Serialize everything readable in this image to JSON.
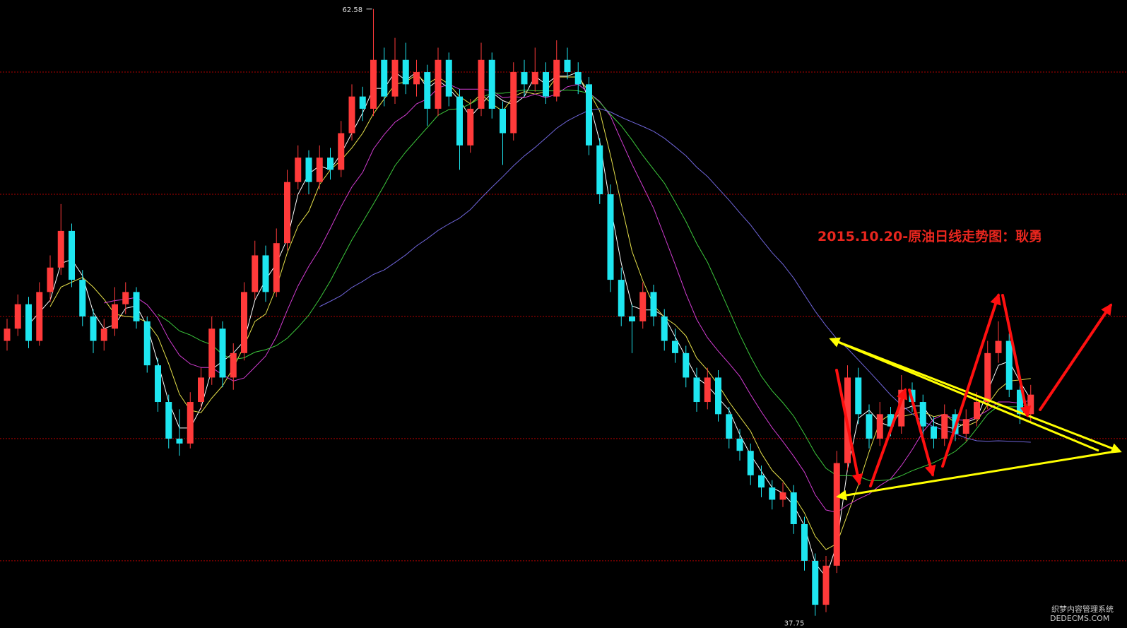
{
  "chart_data": {
    "type": "candlestick",
    "title": "2015.10.20-原油日线走势图：耿勇",
    "watermark": [
      "织梦内容管理系统",
      "DEDECMS.COM"
    ],
    "ylim": [
      37.25,
      62.95
    ],
    "gridlines": [
      40,
      45,
      50,
      55,
      60
    ],
    "up_color": "#ff3a3a",
    "down_color": "#1ee6f0",
    "grid_color": "#b00000",
    "high_marker": 62.58,
    "low_marker": 37.75,
    "moving_averages": [
      {
        "period": 3,
        "color": "#ffffff"
      },
      {
        "period": 5,
        "color": "#e6e04a"
      },
      {
        "period": 10,
        "color": "#d23cd2"
      },
      {
        "period": 15,
        "color": "#3cc83c"
      },
      {
        "period": 30,
        "color": "#6e64d8"
      }
    ],
    "ohlc": [
      [
        49.0,
        49.9,
        48.6,
        49.5
      ],
      [
        49.5,
        50.9,
        49.2,
        50.5
      ],
      [
        50.5,
        50.8,
        48.7,
        49.0
      ],
      [
        49.0,
        51.4,
        48.8,
        51.0
      ],
      [
        51.0,
        52.5,
        50.6,
        52.0
      ],
      [
        52.0,
        54.6,
        51.7,
        53.5
      ],
      [
        53.5,
        53.8,
        51.2,
        51.5
      ],
      [
        51.5,
        51.9,
        49.6,
        50.0
      ],
      [
        50.0,
        50.3,
        48.5,
        49.0
      ],
      [
        49.0,
        49.9,
        48.6,
        49.5
      ],
      [
        49.5,
        51.2,
        49.2,
        50.5
      ],
      [
        50.5,
        51.4,
        50.1,
        51.0
      ],
      [
        51.0,
        51.2,
        49.5,
        49.8
      ],
      [
        49.8,
        50.0,
        47.7,
        48.0
      ],
      [
        48.0,
        48.3,
        46.1,
        46.5
      ],
      [
        46.5,
        46.8,
        44.6,
        45.0
      ],
      [
        45.0,
        46.2,
        44.3,
        44.8
      ],
      [
        44.8,
        46.9,
        44.6,
        46.5
      ],
      [
        46.5,
        47.9,
        46.2,
        47.5
      ],
      [
        47.5,
        50.0,
        47.2,
        49.5
      ],
      [
        49.5,
        49.8,
        47.1,
        47.5
      ],
      [
        47.5,
        48.9,
        47.0,
        48.5
      ],
      [
        48.5,
        51.4,
        48.2,
        51.0
      ],
      [
        51.0,
        53.1,
        50.7,
        52.5
      ],
      [
        52.5,
        52.9,
        50.6,
        51.0
      ],
      [
        51.0,
        53.6,
        50.8,
        53.0
      ],
      [
        53.0,
        56.0,
        52.7,
        55.5
      ],
      [
        55.5,
        57.0,
        55.2,
        56.5
      ],
      [
        56.5,
        56.8,
        55.0,
        55.5
      ],
      [
        55.5,
        57.0,
        55.2,
        56.5
      ],
      [
        56.5,
        56.9,
        55.6,
        56.0
      ],
      [
        56.0,
        58.0,
        55.7,
        57.5
      ],
      [
        57.5,
        59.5,
        57.2,
        59.0
      ],
      [
        59.0,
        59.4,
        58.0,
        58.5
      ],
      [
        58.5,
        62.58,
        58.2,
        60.5
      ],
      [
        60.5,
        61.0,
        58.6,
        59.0
      ],
      [
        59.0,
        61.4,
        58.7,
        60.5
      ],
      [
        60.5,
        61.2,
        59.1,
        59.5
      ],
      [
        59.5,
        60.5,
        59.0,
        60.0
      ],
      [
        60.0,
        60.3,
        57.8,
        58.5
      ],
      [
        58.5,
        61.0,
        58.2,
        60.5
      ],
      [
        60.5,
        60.8,
        58.6,
        59.0
      ],
      [
        59.0,
        59.3,
        56.0,
        57.0
      ],
      [
        57.0,
        58.9,
        56.7,
        58.5
      ],
      [
        58.5,
        61.2,
        58.2,
        60.5
      ],
      [
        60.5,
        60.8,
        58.1,
        58.5
      ],
      [
        58.5,
        58.8,
        56.2,
        57.5
      ],
      [
        57.5,
        60.4,
        57.2,
        60.0
      ],
      [
        60.0,
        60.5,
        59.0,
        59.5
      ],
      [
        59.5,
        61.0,
        59.2,
        60.0
      ],
      [
        60.0,
        60.4,
        58.7,
        59.0
      ],
      [
        59.0,
        61.3,
        58.8,
        60.5
      ],
      [
        60.5,
        61.0,
        59.7,
        60.0
      ],
      [
        60.0,
        60.4,
        59.1,
        59.5
      ],
      [
        59.5,
        59.8,
        56.6,
        57.0
      ],
      [
        57.0,
        57.3,
        54.6,
        55.0
      ],
      [
        55.0,
        55.4,
        51.0,
        51.5
      ],
      [
        51.5,
        52.0,
        49.6,
        50.0
      ],
      [
        50.0,
        50.5,
        48.5,
        49.8
      ],
      [
        49.8,
        51.4,
        49.5,
        51.0
      ],
      [
        51.0,
        51.3,
        49.6,
        50.0
      ],
      [
        50.0,
        50.3,
        48.6,
        49.0
      ],
      [
        49.0,
        49.5,
        48.1,
        48.5
      ],
      [
        48.5,
        48.8,
        47.1,
        47.5
      ],
      [
        47.5,
        47.9,
        46.1,
        46.5
      ],
      [
        46.5,
        47.9,
        46.2,
        47.5
      ],
      [
        47.5,
        47.8,
        45.7,
        46.0
      ],
      [
        46.0,
        46.3,
        44.6,
        45.0
      ],
      [
        45.0,
        45.4,
        44.1,
        44.5
      ],
      [
        44.5,
        44.8,
        43.1,
        43.5
      ],
      [
        43.5,
        43.9,
        42.6,
        43.0
      ],
      [
        43.0,
        43.3,
        42.1,
        42.5
      ],
      [
        42.5,
        43.2,
        42.2,
        42.8
      ],
      [
        42.8,
        43.1,
        41.1,
        41.5
      ],
      [
        41.5,
        41.8,
        39.6,
        40.0
      ],
      [
        40.0,
        40.3,
        37.75,
        38.2
      ],
      [
        38.2,
        40.2,
        37.9,
        39.8
      ],
      [
        39.8,
        44.5,
        39.5,
        44.0
      ],
      [
        44.0,
        48.0,
        43.7,
        47.5
      ],
      [
        47.5,
        47.9,
        45.6,
        46.0
      ],
      [
        46.0,
        46.4,
        44.6,
        45.0
      ],
      [
        45.0,
        46.5,
        44.7,
        46.0
      ],
      [
        46.0,
        46.3,
        45.1,
        45.5
      ],
      [
        45.5,
        47.6,
        45.2,
        47.0
      ],
      [
        47.0,
        47.3,
        46.1,
        46.5
      ],
      [
        46.5,
        46.8,
        45.1,
        45.5
      ],
      [
        45.5,
        45.9,
        44.6,
        45.0
      ],
      [
        45.0,
        46.4,
        44.7,
        46.0
      ],
      [
        46.0,
        46.2,
        44.9,
        45.2
      ],
      [
        45.2,
        46.2,
        44.9,
        45.8
      ],
      [
        45.8,
        46.9,
        45.5,
        46.5
      ],
      [
        46.5,
        49.0,
        46.2,
        48.5
      ],
      [
        48.5,
        49.8,
        48.1,
        49.0
      ],
      [
        49.0,
        49.3,
        46.7,
        47.0
      ],
      [
        47.0,
        47.4,
        45.6,
        46.0
      ],
      [
        46.0,
        47.2,
        45.7,
        46.8
      ]
    ]
  }
}
